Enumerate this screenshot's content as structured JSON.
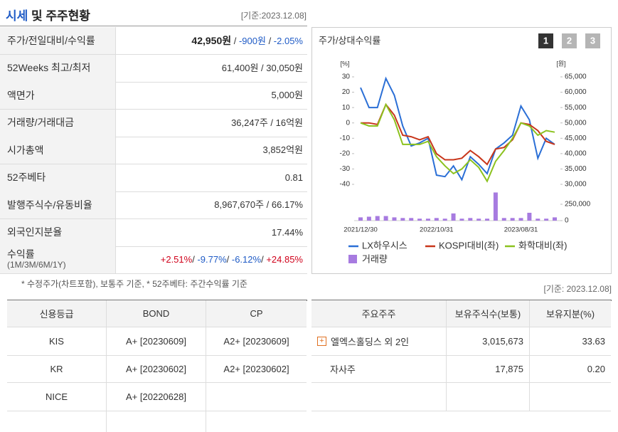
{
  "header": {
    "title_parts": [
      "시세",
      " 및 주주현황"
    ],
    "date": "[기준:2023.12.08]"
  },
  "price_table": {
    "rows": [
      {
        "label": "주가/전일대비/수익률",
        "parts": [
          {
            "text": "42,950원",
            "color": "#222222",
            "bold": true
          },
          {
            "text": " / "
          },
          {
            "text": "-900원",
            "color": "#1f5bc6"
          },
          {
            "text": " / "
          },
          {
            "text": "-2.05%",
            "color": "#1f5bc6"
          }
        ]
      },
      {
        "label": "52Weeks 최고/최저",
        "parts": [
          {
            "text": "61,400원 / 30,050원"
          }
        ]
      },
      {
        "label": "액면가",
        "parts": [
          {
            "text": "5,000원"
          }
        ]
      },
      {
        "label": "거래량/거래대금",
        "parts": [
          {
            "text": "36,247주 / 16억원"
          }
        ]
      },
      {
        "label": "시가총액",
        "parts": [
          {
            "text": "3,852억원"
          }
        ]
      },
      {
        "label": "52주베타",
        "parts": [
          {
            "text": "0.81"
          }
        ]
      },
      {
        "label": "발행주식수/유동비율",
        "parts": [
          {
            "text": "8,967,670주 / 66.17%"
          }
        ]
      },
      {
        "label": "외국인지분율",
        "parts": [
          {
            "text": "17.44%"
          }
        ]
      },
      {
        "label": "수익률",
        "sublabel": "(1M/3M/6M/1Y)",
        "parts": [
          {
            "text": "+2.51%",
            "color": "#d0021b"
          },
          {
            "text": "/ "
          },
          {
            "text": "-9.77%",
            "color": "#1f5bc6"
          },
          {
            "text": "/ "
          },
          {
            "text": "-6.12%",
            "color": "#1f5bc6"
          },
          {
            "text": "/ "
          },
          {
            "text": "+24.85%",
            "color": "#d0021b"
          }
        ]
      }
    ]
  },
  "note": "* 수정주가(차트포함), 보통주 기준, * 52주베타: 주간수익률 기준",
  "credit_table": {
    "headers": [
      "신용등급",
      "BOND",
      "CP"
    ],
    "rows": [
      [
        "KIS",
        "A+ [20230609]",
        "A2+ [20230609]"
      ],
      [
        "KR",
        "A+ [20230602]",
        "A2+ [20230602]"
      ],
      [
        "NICE",
        "A+ [20220628]"
      ]
    ]
  },
  "shareholders": {
    "date": "[기준: 2023.12.08]",
    "headers": [
      "주요주주",
      "보유주식수(보통)",
      "보유지분(%)"
    ],
    "rows": [
      {
        "name": "엘엑스홀딩스 외 2인",
        "shares": "3,015,673",
        "ratio": "33.63",
        "expandable": true
      },
      {
        "name": "자사주",
        "shares": "17,875",
        "ratio": "0.20"
      }
    ]
  },
  "chart_data": {
    "type": "line",
    "title": "주가/상대수익률",
    "tabs": [
      "1",
      "2",
      "3"
    ],
    "active_tab": 0,
    "y_unit": "[%]",
    "y2_unit": "[원]",
    "categories": [
      "2021/12/30",
      null,
      null,
      null,
      null,
      null,
      null,
      null,
      null,
      "2022/10/31",
      null,
      null,
      null,
      null,
      null,
      null,
      null,
      null,
      null,
      "2023/08/31",
      null,
      null,
      null,
      null
    ],
    "ylim": [
      -40,
      30
    ],
    "yticks": [
      30,
      20,
      10,
      0,
      -10,
      -20,
      -30,
      -40
    ],
    "y2lim": [
      30000,
      65000
    ],
    "y2ticks": [
      {
        "value": 65000,
        "label": "65,000"
      },
      {
        "value": 60000,
        "label": "60,000"
      },
      {
        "value": 55000,
        "label": "55,000"
      },
      {
        "value": 50000,
        "label": "50,000"
      },
      {
        "value": 45000,
        "label": "45,000"
      },
      {
        "value": 40000,
        "label": "40,000"
      },
      {
        "value": 35000,
        "label": "35,000"
      },
      {
        "value": 30000,
        "label": "30,000"
      }
    ],
    "series": [
      {
        "name": "LX하우시스",
        "color": "#2b6fd6",
        "values": [
          23,
          10,
          10,
          29,
          18,
          -2,
          -15,
          -13,
          -10,
          -34,
          -35,
          -28,
          -37,
          -22,
          -27,
          -33,
          -17,
          -13,
          -8,
          11,
          2,
          -23,
          -10,
          -14
        ]
      },
      {
        "name": "KOSPI대비(좌)",
        "color": "#c8361b",
        "values": [
          0,
          0,
          -1,
          12,
          5,
          -8,
          -9,
          -11,
          -9,
          -20,
          -24,
          -24,
          -23,
          -18,
          -22,
          -27,
          -17,
          -16,
          -11,
          0,
          -1,
          -5,
          -12,
          -14
        ]
      },
      {
        "name": "화학대비(좌)",
        "color": "#8cc21f",
        "values": [
          0,
          -2,
          -2,
          12,
          2,
          -14,
          -14,
          -14,
          -12,
          -22,
          -28,
          -33,
          -30,
          -24,
          -29,
          -38,
          -25,
          -18,
          -10,
          0,
          -2,
          -8,
          -5,
          -6
        ]
      }
    ],
    "volume": {
      "name": "거래량",
      "color": "#a77be0",
      "lim": [
        0,
        450000
      ],
      "ticks": [
        {
          "value": 250000,
          "label": "250,000"
        },
        0
      ],
      "values": [
        50000,
        60000,
        70000,
        70000,
        50000,
        40000,
        40000,
        30000,
        30000,
        40000,
        30000,
        110000,
        30000,
        40000,
        30000,
        30000,
        430000,
        40000,
        40000,
        40000,
        120000,
        30000,
        30000,
        50000
      ]
    }
  }
}
